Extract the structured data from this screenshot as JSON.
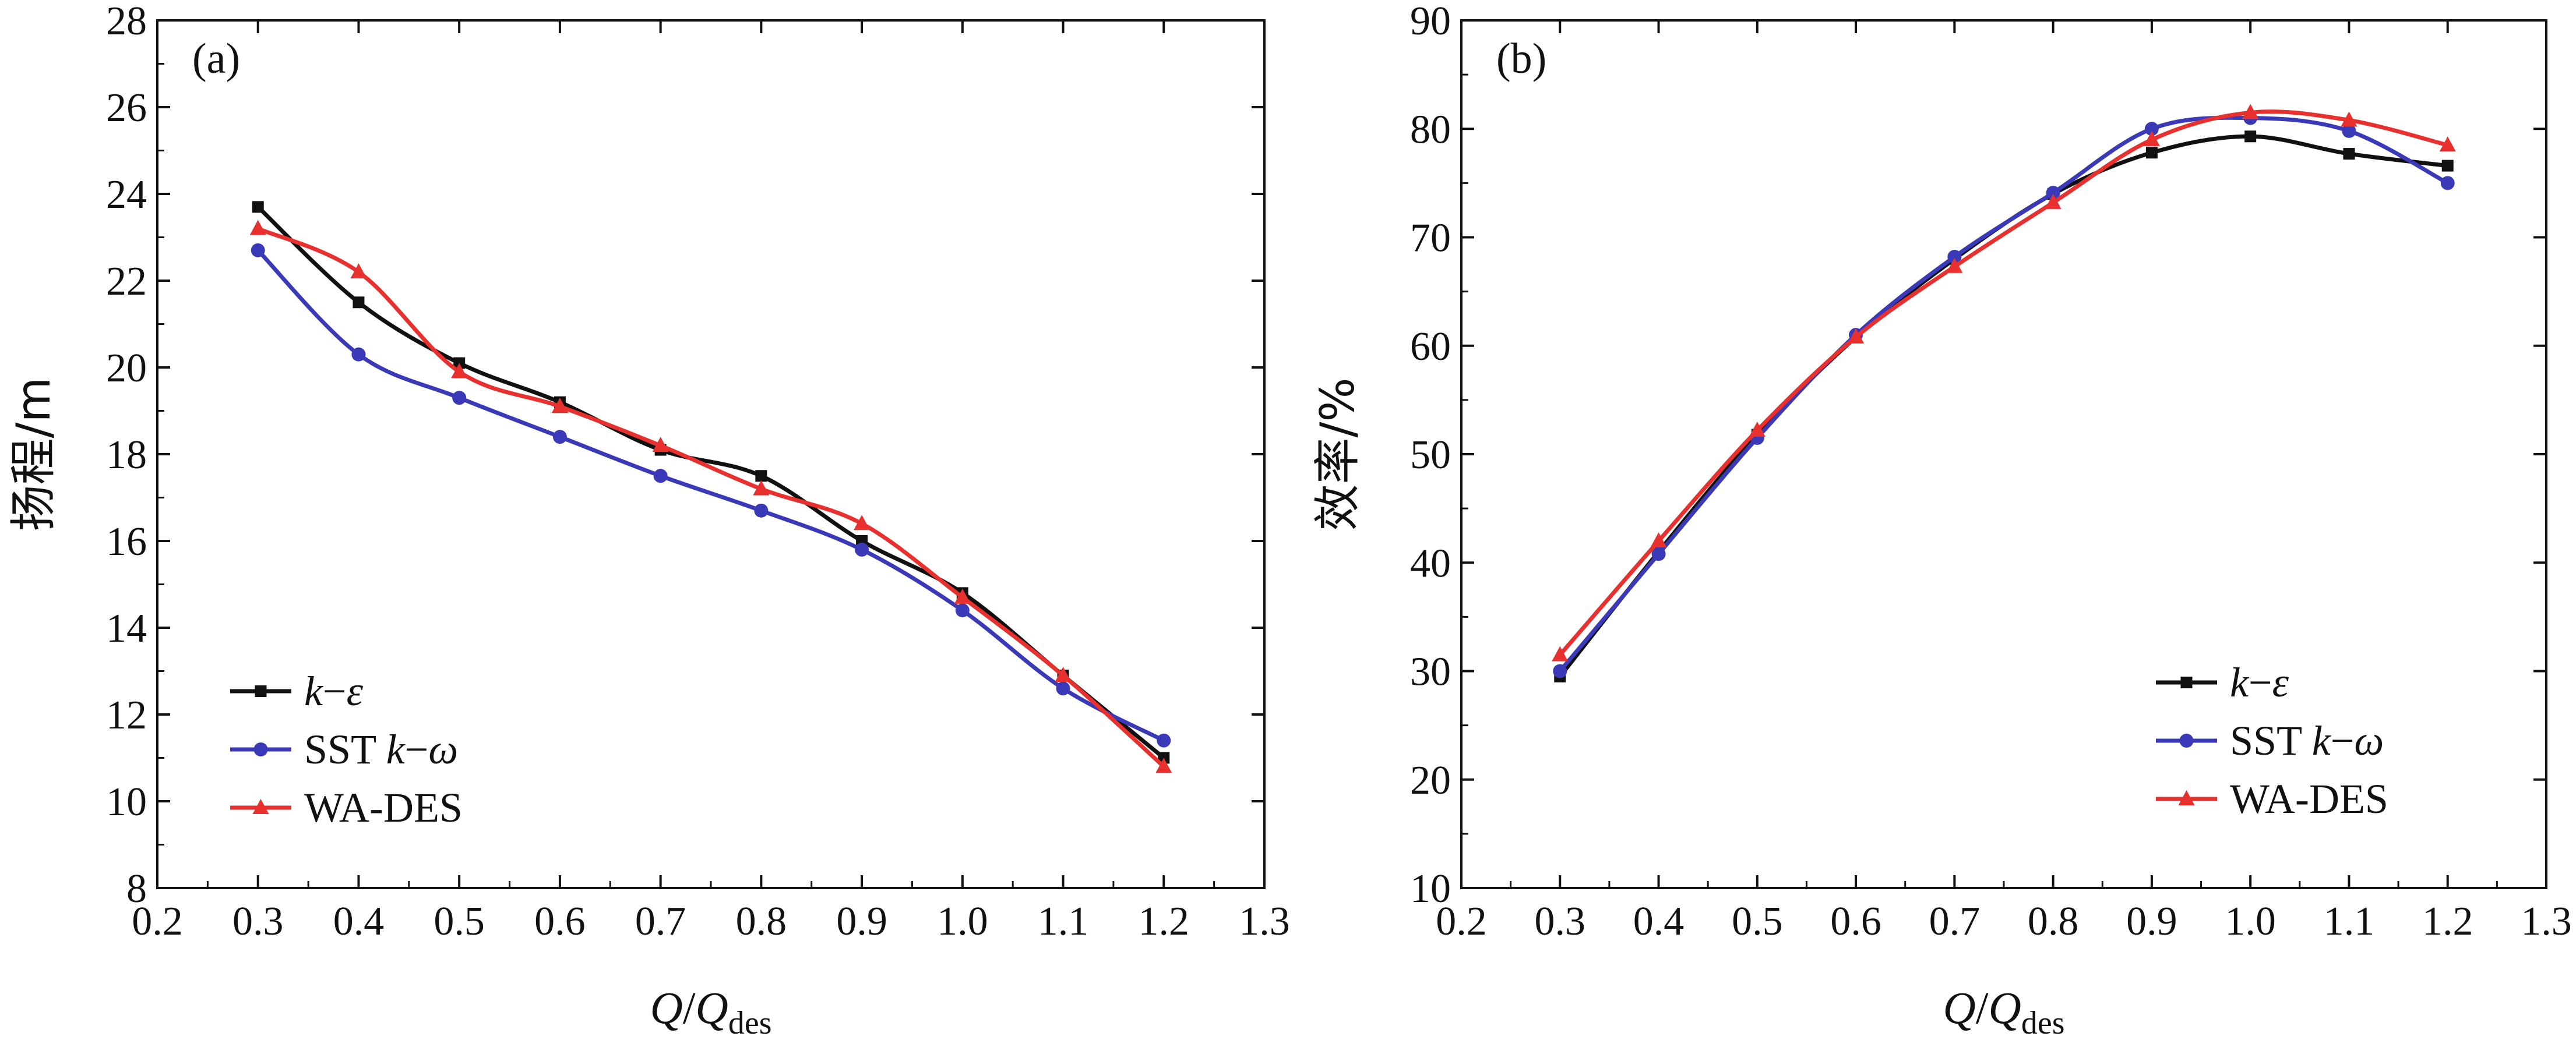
{
  "chart_data": [
    {
      "type": "line",
      "panel_label": "(a)",
      "xlabel": {
        "main": "Q/Q",
        "sub": "des"
      },
      "ylabel": "扬程/m",
      "xlim": [
        0.2,
        1.3
      ],
      "ylim": [
        8,
        28
      ],
      "x_ticks": [
        "0.2",
        "0.3",
        "0.4",
        "0.5",
        "0.6",
        "0.7",
        "0.8",
        "0.9",
        "1.0",
        "1.1",
        "1.2",
        "1.3"
      ],
      "y_ticks": [
        "8",
        "10",
        "12",
        "14",
        "16",
        "18",
        "20",
        "22",
        "24",
        "26",
        "28"
      ],
      "x_tick_values": [
        0.2,
        0.3,
        0.4,
        0.5,
        0.6,
        0.7,
        0.8,
        0.9,
        1.0,
        1.1,
        1.2,
        1.3
      ],
      "y_tick_values": [
        8,
        10,
        12,
        14,
        16,
        18,
        20,
        22,
        24,
        26,
        28
      ],
      "legend_position": "bottom-left",
      "x": [
        0.3,
        0.4,
        0.5,
        0.6,
        0.7,
        0.8,
        0.9,
        1.0,
        1.1,
        1.2
      ],
      "series": [
        {
          "name": "k−ε",
          "marker": "square",
          "color": "#111111",
          "values": [
            23.7,
            21.5,
            20.1,
            19.2,
            18.1,
            17.5,
            16.0,
            14.8,
            12.9,
            11.0
          ]
        },
        {
          "name": "SST k−ω",
          "marker": "circle",
          "color": "#3a3ab8",
          "values": [
            22.7,
            20.3,
            19.3,
            18.4,
            17.5,
            16.7,
            15.8,
            14.4,
            12.6,
            11.4
          ]
        },
        {
          "name": "WA-DES",
          "marker": "triangle",
          "color": "#e8312f",
          "values": [
            23.2,
            22.2,
            19.9,
            19.1,
            18.2,
            17.2,
            16.4,
            14.7,
            12.9,
            10.8
          ]
        }
      ]
    },
    {
      "type": "line",
      "panel_label": "(b)",
      "xlabel": {
        "main": "Q/Q",
        "sub": "des"
      },
      "ylabel": "效率/%",
      "xlim": [
        0.2,
        1.3
      ],
      "ylim": [
        10,
        90
      ],
      "x_ticks": [
        "0.2",
        "0.3",
        "0.4",
        "0.5",
        "0.6",
        "0.7",
        "0.8",
        "0.9",
        "1.0",
        "1.1",
        "1.2",
        "1.3"
      ],
      "y_ticks": [
        "10",
        "20",
        "30",
        "40",
        "50",
        "60",
        "70",
        "80",
        "90"
      ],
      "x_tick_values": [
        0.2,
        0.3,
        0.4,
        0.5,
        0.6,
        0.7,
        0.8,
        0.9,
        1.0,
        1.1,
        1.2,
        1.3
      ],
      "y_tick_values": [
        10,
        20,
        30,
        40,
        50,
        60,
        70,
        80,
        90
      ],
      "legend_position": "bottom-right",
      "x": [
        0.3,
        0.4,
        0.5,
        0.6,
        0.7,
        0.8,
        0.9,
        1.0,
        1.1,
        1.2
      ],
      "series": [
        {
          "name": "k−ε",
          "marker": "square",
          "color": "#111111",
          "values": [
            29.5,
            41.0,
            51.8,
            60.8,
            68.0,
            74.0,
            77.8,
            79.3,
            77.7,
            76.6
          ]
        },
        {
          "name": "SST k−ω",
          "marker": "circle",
          "color": "#3a3ab8",
          "values": [
            30.0,
            40.8,
            51.5,
            61.0,
            68.2,
            74.1,
            80.0,
            81.0,
            79.8,
            75.0
          ]
        },
        {
          "name": "WA-DES",
          "marker": "triangle",
          "color": "#e8312f",
          "values": [
            31.5,
            42.0,
            52.2,
            60.8,
            67.3,
            73.2,
            79.0,
            81.5,
            80.8,
            78.5
          ]
        }
      ]
    }
  ]
}
